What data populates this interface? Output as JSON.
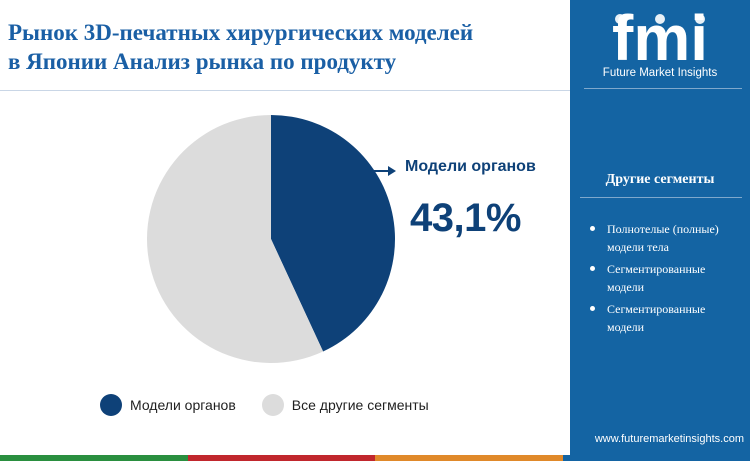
{
  "header": {
    "title_line1": "Рынок 3D-печатных хирургических моделей",
    "title_line2": "в Японии Анализ рынка по продукту"
  },
  "chart_data": {
    "type": "pie",
    "title": "Рынок 3D-печатных хирургических моделей в Японии Анализ рынка по продукту",
    "slices": [
      {
        "label": "Модели органов",
        "value": 43.1,
        "color": "#0e4178"
      },
      {
        "label": "Все другие сегменты",
        "value": 56.9,
        "color": "#dcdcdc"
      }
    ],
    "callout": {
      "label": "Модели органов",
      "value_text": "43,1%"
    },
    "legend_position": "bottom"
  },
  "legend": {
    "items": [
      {
        "label": "Модели органов",
        "color": "#0e4178"
      },
      {
        "label": "Все другие сегменты",
        "color": "#dcdcdc"
      }
    ]
  },
  "sidebar": {
    "logo_text": "fmi",
    "brand_name": "Future Market Insights",
    "segments_title": "Другие сегменты",
    "segments": [
      "Полнотелые (полные) модели тела",
      "Сегментированные модели",
      "Сегментированные модели"
    ],
    "website": "www.futuremarketinsights.com",
    "background_color": "#1464a3"
  },
  "footer": {
    "stripe_colors": [
      "#2a8f3f",
      "#c1272d",
      "#e0892a",
      "#1464a3"
    ]
  }
}
